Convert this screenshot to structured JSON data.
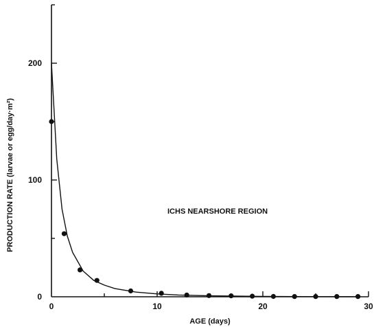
{
  "chart_data": {
    "type": "scatter",
    "title": "",
    "xlabel": "AGE (days)",
    "ylabel": "PRODUCTION RATE (larvae or egg/day·m²)",
    "annotation": "ICHS NEARSHORE REGION",
    "xlim": [
      0,
      30
    ],
    "ylim": [
      0,
      250
    ],
    "x_ticks": [
      "0",
      "10",
      "20",
      "30"
    ],
    "y_ticks": [
      "0",
      "100",
      "200"
    ],
    "grid": false,
    "legend": "none",
    "series": [
      {
        "kind": "points",
        "x": [
          0,
          1.2,
          2.7,
          4.3,
          7.5,
          10.4,
          12.8,
          14.9,
          17.0,
          19.0,
          21.0,
          23.0,
          25.0,
          27.0,
          29.0
        ],
        "y": [
          150,
          54,
          23,
          14,
          5,
          3,
          1.5,
          1,
          0.8,
          0.5,
          0.3,
          0.2,
          0.2,
          0.2,
          0.2
        ]
      },
      {
        "kind": "fit-curve",
        "x": [
          0,
          0.5,
          1,
          1.5,
          2,
          3,
          4,
          5,
          6,
          8,
          10,
          12,
          15,
          20,
          25,
          29
        ],
        "y": [
          200,
          118,
          75,
          52,
          38,
          22,
          14,
          10,
          7,
          4,
          2.5,
          1.5,
          0.8,
          0.3,
          0.1,
          0.05
        ]
      }
    ]
  }
}
